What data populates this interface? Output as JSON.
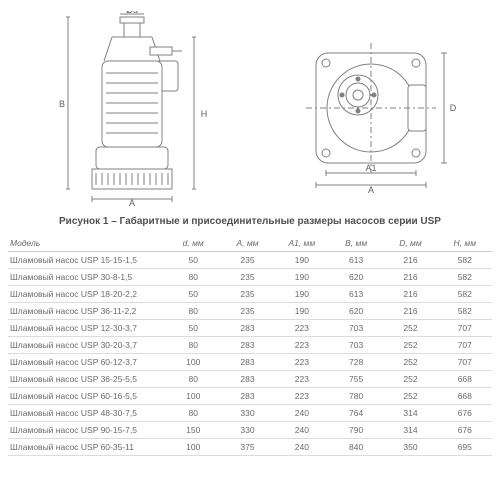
{
  "caption": "Рисунок 1 – Габаритные и присоединительные размеры насосов серии USP",
  "diagram": {
    "labels": {
      "d": "Ød",
      "A": "A",
      "A1": "A1",
      "B": "B",
      "D": "D",
      "H": "H"
    },
    "colors": {
      "stroke": "#808080",
      "fill": "#ffffff",
      "hatch": "#b0b0b0"
    },
    "line_width": 1
  },
  "table": {
    "type": "table",
    "columns": [
      "Модель",
      "d, мм",
      "A, мм",
      "A1, мм",
      "B, мм",
      "D, мм",
      "H, мм"
    ],
    "rows": [
      [
        "Шламовый насос USP 15-15-1,5",
        "50",
        "235",
        "190",
        "613",
        "216",
        "582"
      ],
      [
        "Шламовый насос USP 30-8-1,5",
        "80",
        "235",
        "190",
        "620",
        "216",
        "582"
      ],
      [
        "Шламовый насос USP 18-20-2,2",
        "50",
        "235",
        "190",
        "613",
        "216",
        "582"
      ],
      [
        "Шламовый насос USP 36-11-2,2",
        "80",
        "235",
        "190",
        "620",
        "216",
        "582"
      ],
      [
        "Шламовый насос USP 12-30-3,7",
        "50",
        "283",
        "223",
        "703",
        "252",
        "707"
      ],
      [
        "Шламовый насос USP 30-20-3,7",
        "80",
        "283",
        "223",
        "703",
        "252",
        "707"
      ],
      [
        "Шламовый насос USP 60-12-3,7",
        "100",
        "283",
        "223",
        "728",
        "252",
        "707"
      ],
      [
        "Шламовый насос USP 36-25-5,5",
        "80",
        "283",
        "223",
        "755",
        "252",
        "668"
      ],
      [
        "Шламовый насос USP 60-16-5,5",
        "100",
        "283",
        "223",
        "780",
        "252",
        "668"
      ],
      [
        "Шламовый насос USP 48-30-7,5",
        "80",
        "330",
        "240",
        "764",
        "314",
        "676"
      ],
      [
        "Шламовый насос USP 90-15-7,5",
        "150",
        "330",
        "240",
        "790",
        "314",
        "676"
      ],
      [
        "Шламовый насос USP 60-35-11",
        "100",
        "375",
        "240",
        "840",
        "350",
        "695"
      ]
    ],
    "font_size": 8.5,
    "border_color": "#dcdcdc",
    "text_color": "#6a6a6a"
  }
}
